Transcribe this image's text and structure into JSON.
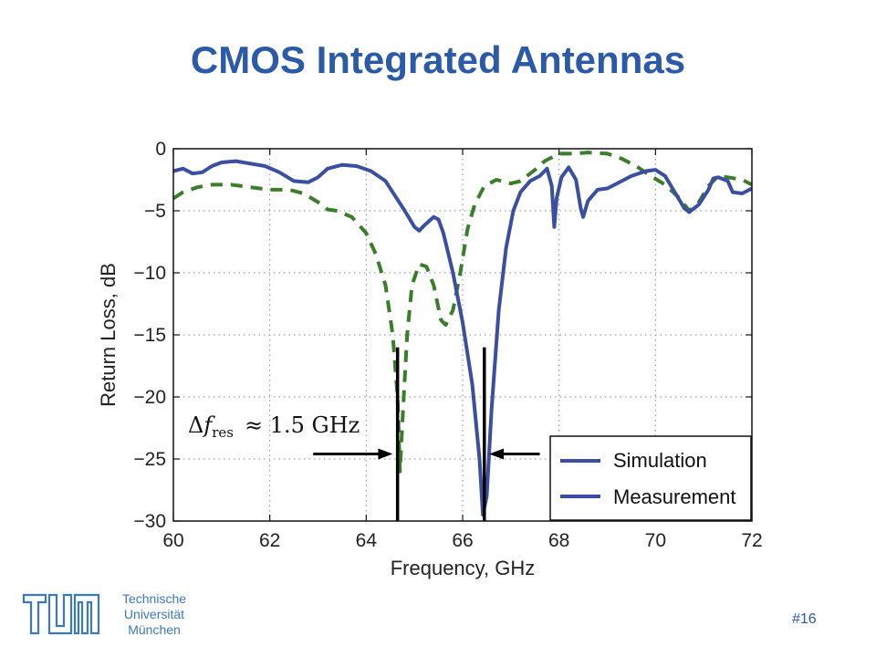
{
  "slide": {
    "title": "CMOS Integrated Antennas",
    "page_number": "#16",
    "organization_lines": [
      "Technische",
      "Universität",
      "München"
    ],
    "brand_color": "#3c78c0"
  },
  "chart_data": {
    "type": "line",
    "xlabel": "Frequency, GHz",
    "ylabel": "Return Loss, dB",
    "xlim": [
      60,
      72
    ],
    "ylim": [
      -30,
      0
    ],
    "xticks": [
      60,
      62,
      64,
      66,
      68,
      70,
      72
    ],
    "yticks": [
      0,
      -5,
      -10,
      -15,
      -20,
      -25,
      -30
    ],
    "ytick_labels": [
      "0",
      "−5",
      "−10",
      "−15",
      "−20",
      "−25",
      "−30"
    ],
    "grid": true,
    "legend_position": "bottom-right",
    "series": [
      {
        "name": "Simulation",
        "color": "#3a4fa0",
        "dash": "solid",
        "points": [
          [
            60.0,
            -1.8
          ],
          [
            60.2,
            -1.6
          ],
          [
            60.4,
            -2.0
          ],
          [
            60.6,
            -1.9
          ],
          [
            60.8,
            -1.4
          ],
          [
            61.0,
            -1.1
          ],
          [
            61.3,
            -1.0
          ],
          [
            61.6,
            -1.2
          ],
          [
            61.9,
            -1.4
          ],
          [
            62.2,
            -1.9
          ],
          [
            62.5,
            -2.6
          ],
          [
            62.8,
            -2.7
          ],
          [
            63.0,
            -2.3
          ],
          [
            63.2,
            -1.6
          ],
          [
            63.5,
            -1.3
          ],
          [
            63.8,
            -1.4
          ],
          [
            64.1,
            -1.8
          ],
          [
            64.4,
            -2.6
          ],
          [
            64.6,
            -3.8
          ],
          [
            64.8,
            -5.0
          ],
          [
            65.0,
            -6.3
          ],
          [
            65.1,
            -6.6
          ],
          [
            65.2,
            -6.2
          ],
          [
            65.4,
            -5.5
          ],
          [
            65.5,
            -5.7
          ],
          [
            65.6,
            -6.8
          ],
          [
            65.8,
            -10.0
          ],
          [
            66.0,
            -14.0
          ],
          [
            66.2,
            -19.0
          ],
          [
            66.35,
            -25.0
          ],
          [
            66.42,
            -29.5
          ],
          [
            66.5,
            -28.0
          ],
          [
            66.6,
            -21.0
          ],
          [
            66.75,
            -13.0
          ],
          [
            66.9,
            -8.0
          ],
          [
            67.05,
            -5.0
          ],
          [
            67.2,
            -3.5
          ],
          [
            67.4,
            -2.6
          ],
          [
            67.6,
            -2.2
          ],
          [
            67.75,
            -1.6
          ],
          [
            67.85,
            -3.0
          ],
          [
            67.9,
            -6.3
          ],
          [
            67.95,
            -4.0
          ],
          [
            68.05,
            -2.3
          ],
          [
            68.2,
            -1.5
          ],
          [
            68.35,
            -2.5
          ],
          [
            68.45,
            -4.8
          ],
          [
            68.5,
            -5.5
          ],
          [
            68.6,
            -4.2
          ],
          [
            68.8,
            -3.3
          ],
          [
            69.0,
            -3.2
          ],
          [
            69.2,
            -2.8
          ],
          [
            69.5,
            -2.2
          ],
          [
            69.8,
            -1.8
          ],
          [
            70.0,
            -1.7
          ],
          [
            70.2,
            -2.2
          ],
          [
            70.4,
            -3.5
          ],
          [
            70.6,
            -4.8
          ],
          [
            70.7,
            -5.1
          ],
          [
            70.9,
            -4.5
          ],
          [
            71.1,
            -3.3
          ],
          [
            71.2,
            -2.4
          ],
          [
            71.3,
            -2.3
          ],
          [
            71.5,
            -2.6
          ],
          [
            71.6,
            -3.5
          ],
          [
            71.8,
            -3.6
          ],
          [
            72.0,
            -3.2
          ]
        ]
      },
      {
        "name": "Measurement",
        "color": "#3a7d2a",
        "dash": "dashed",
        "points": [
          [
            60.0,
            -4.0
          ],
          [
            60.2,
            -3.5
          ],
          [
            60.5,
            -3.1
          ],
          [
            60.8,
            -2.9
          ],
          [
            61.2,
            -2.9
          ],
          [
            61.6,
            -3.1
          ],
          [
            62.0,
            -3.3
          ],
          [
            62.4,
            -3.3
          ],
          [
            62.7,
            -3.6
          ],
          [
            63.0,
            -4.3
          ],
          [
            63.2,
            -4.9
          ],
          [
            63.4,
            -5.0
          ],
          [
            63.7,
            -5.5
          ],
          [
            64.0,
            -6.8
          ],
          [
            64.2,
            -8.5
          ],
          [
            64.4,
            -11.0
          ],
          [
            64.55,
            -15.0
          ],
          [
            64.65,
            -20.0
          ],
          [
            64.7,
            -26.0
          ],
          [
            64.75,
            -22.0
          ],
          [
            64.85,
            -15.0
          ],
          [
            64.95,
            -11.0
          ],
          [
            65.1,
            -9.3
          ],
          [
            65.25,
            -9.5
          ],
          [
            65.4,
            -11.0
          ],
          [
            65.55,
            -13.8
          ],
          [
            65.65,
            -14.2
          ],
          [
            65.8,
            -13.0
          ],
          [
            65.95,
            -10.0
          ],
          [
            66.1,
            -6.5
          ],
          [
            66.25,
            -4.5
          ],
          [
            66.45,
            -3.0
          ],
          [
            66.7,
            -2.5
          ],
          [
            67.0,
            -2.8
          ],
          [
            67.2,
            -2.6
          ],
          [
            67.5,
            -1.7
          ],
          [
            67.7,
            -1.0
          ],
          [
            68.0,
            -0.4
          ],
          [
            68.3,
            -0.4
          ],
          [
            68.6,
            -0.3
          ],
          [
            69.0,
            -0.4
          ],
          [
            69.3,
            -0.8
          ],
          [
            69.6,
            -1.4
          ],
          [
            69.9,
            -2.2
          ],
          [
            70.2,
            -2.9
          ],
          [
            70.5,
            -4.0
          ],
          [
            70.7,
            -5.0
          ],
          [
            70.9,
            -4.3
          ],
          [
            71.1,
            -3.0
          ],
          [
            71.3,
            -2.2
          ],
          [
            71.5,
            -2.3
          ],
          [
            71.8,
            -2.5
          ],
          [
            72.0,
            -2.9
          ]
        ]
      }
    ],
    "annotations": [
      {
        "type": "marker_line",
        "x": 64.65,
        "y_from": -16,
        "y_to": -30
      },
      {
        "type": "marker_line",
        "x": 66.45,
        "y_from": -16,
        "y_to": -30
      },
      {
        "type": "arrow",
        "from": [
          62.9,
          -24.6
        ],
        "to": [
          64.55,
          -24.6
        ]
      },
      {
        "type": "arrow",
        "from": [
          67.6,
          -24.6
        ],
        "to": [
          66.55,
          -24.6
        ]
      }
    ],
    "annotation_label": "Δf_res ≈ 1.5 GHz",
    "annotation_text": {
      "delta": "Δ",
      "f": "f",
      "sub": "res",
      "approx": "≈ 1.5 GHz"
    }
  }
}
